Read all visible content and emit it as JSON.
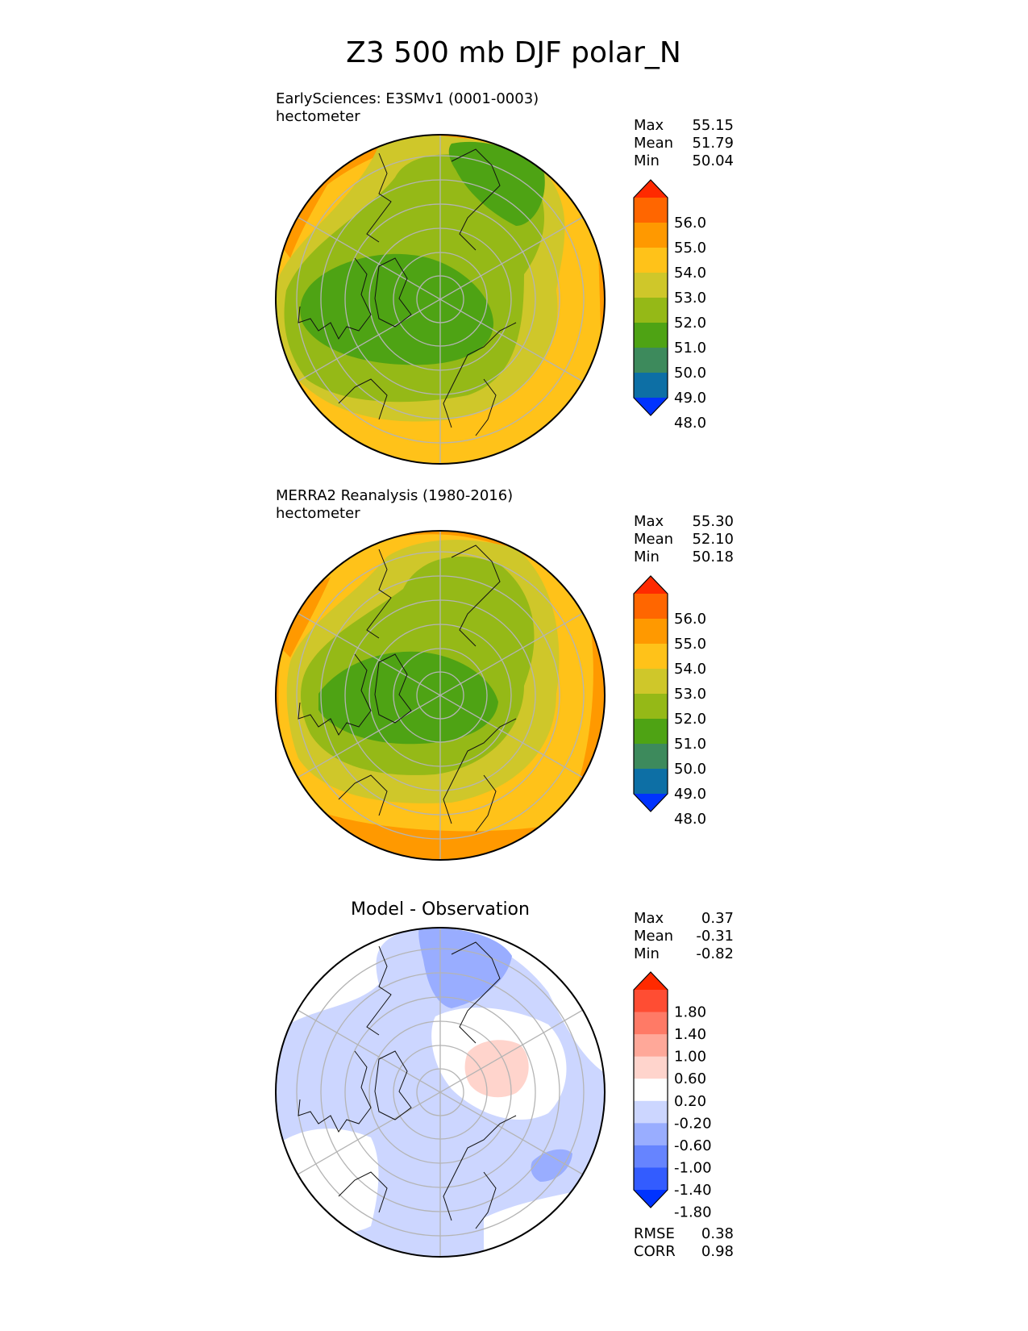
{
  "figure_title": "Z3 500 mb DJF polar_N",
  "stat_labels": {
    "max": "Max",
    "mean": "Mean",
    "min": "Min",
    "rmse": "RMSE",
    "corr": "CORR"
  },
  "chart_data": [
    {
      "type": "heatmap",
      "projection": "north-polar-stereographic",
      "title_line1": "EarlySciences: E3SMv1 (0001-0003)",
      "title_line2": "hectometer",
      "stats": {
        "max": "55.15",
        "mean": "51.79",
        "min": "50.04"
      },
      "colorbar": {
        "labels": [
          "56.0",
          "55.0",
          "54.0",
          "53.0",
          "52.0",
          "51.0",
          "50.0",
          "49.0",
          "48.0"
        ],
        "colors_top_to_bottom": [
          "#ff2a00",
          "#ff6600",
          "#ff9900",
          "#ffc219",
          "#cfc72a",
          "#95b917",
          "#4ea314",
          "#3d8a5c",
          "#0d6fa5",
          "#0033ff"
        ]
      },
      "field_levels": [
        {
          "value": 53.0,
          "color": "#ffc219"
        },
        {
          "value": 52.0,
          "color": "#cfc72a"
        },
        {
          "value": 51.0,
          "color": "#95b917"
        },
        {
          "value": 50.0,
          "color": "#4ea314"
        },
        {
          "value": 54.0,
          "color": "#ff9900"
        }
      ]
    },
    {
      "type": "heatmap",
      "projection": "north-polar-stereographic",
      "title_line1": "MERRA2 Reanalysis (1980-2016)",
      "title_line2": "hectometer",
      "stats": {
        "max": "55.30",
        "mean": "52.10",
        "min": "50.18"
      },
      "colorbar": {
        "labels": [
          "56.0",
          "55.0",
          "54.0",
          "53.0",
          "52.0",
          "51.0",
          "50.0",
          "49.0",
          "48.0"
        ],
        "colors_top_to_bottom": [
          "#ff2a00",
          "#ff6600",
          "#ff9900",
          "#ffc219",
          "#cfc72a",
          "#95b917",
          "#4ea314",
          "#3d8a5c",
          "#0d6fa5",
          "#0033ff"
        ]
      },
      "field_levels": [
        {
          "value": 53.0,
          "color": "#ffc219"
        },
        {
          "value": 52.0,
          "color": "#cfc72a"
        },
        {
          "value": 51.0,
          "color": "#95b917"
        },
        {
          "value": 50.0,
          "color": "#4ea314"
        },
        {
          "value": 54.0,
          "color": "#ff9900"
        }
      ]
    },
    {
      "type": "heatmap",
      "projection": "north-polar-stereographic",
      "title": "Model - Observation",
      "stats": {
        "max": "0.37",
        "mean": "-0.31",
        "min": "-0.82",
        "rmse": "0.38",
        "corr": "0.98"
      },
      "colorbar": {
        "labels": [
          "1.80",
          "1.40",
          "1.00",
          "0.60",
          "0.20",
          "-0.20",
          "-0.60",
          "-1.00",
          "-1.40",
          "-1.80"
        ],
        "colors_top_to_bottom": [
          "#ff2a00",
          "#ff4d33",
          "#ff7a66",
          "#ffa899",
          "#ffd4cc",
          "#ffffff",
          "#ccd6ff",
          "#99adff",
          "#6684ff",
          "#335cff",
          "#0033ff"
        ]
      },
      "field_levels": [
        {
          "value": -0.4,
          "color": "#ccd6ff"
        },
        {
          "value": 0.0,
          "color": "#ffffff"
        },
        {
          "value": -0.8,
          "color": "#99adff"
        },
        {
          "value": 0.4,
          "color": "#ffd4cc"
        }
      ]
    }
  ]
}
